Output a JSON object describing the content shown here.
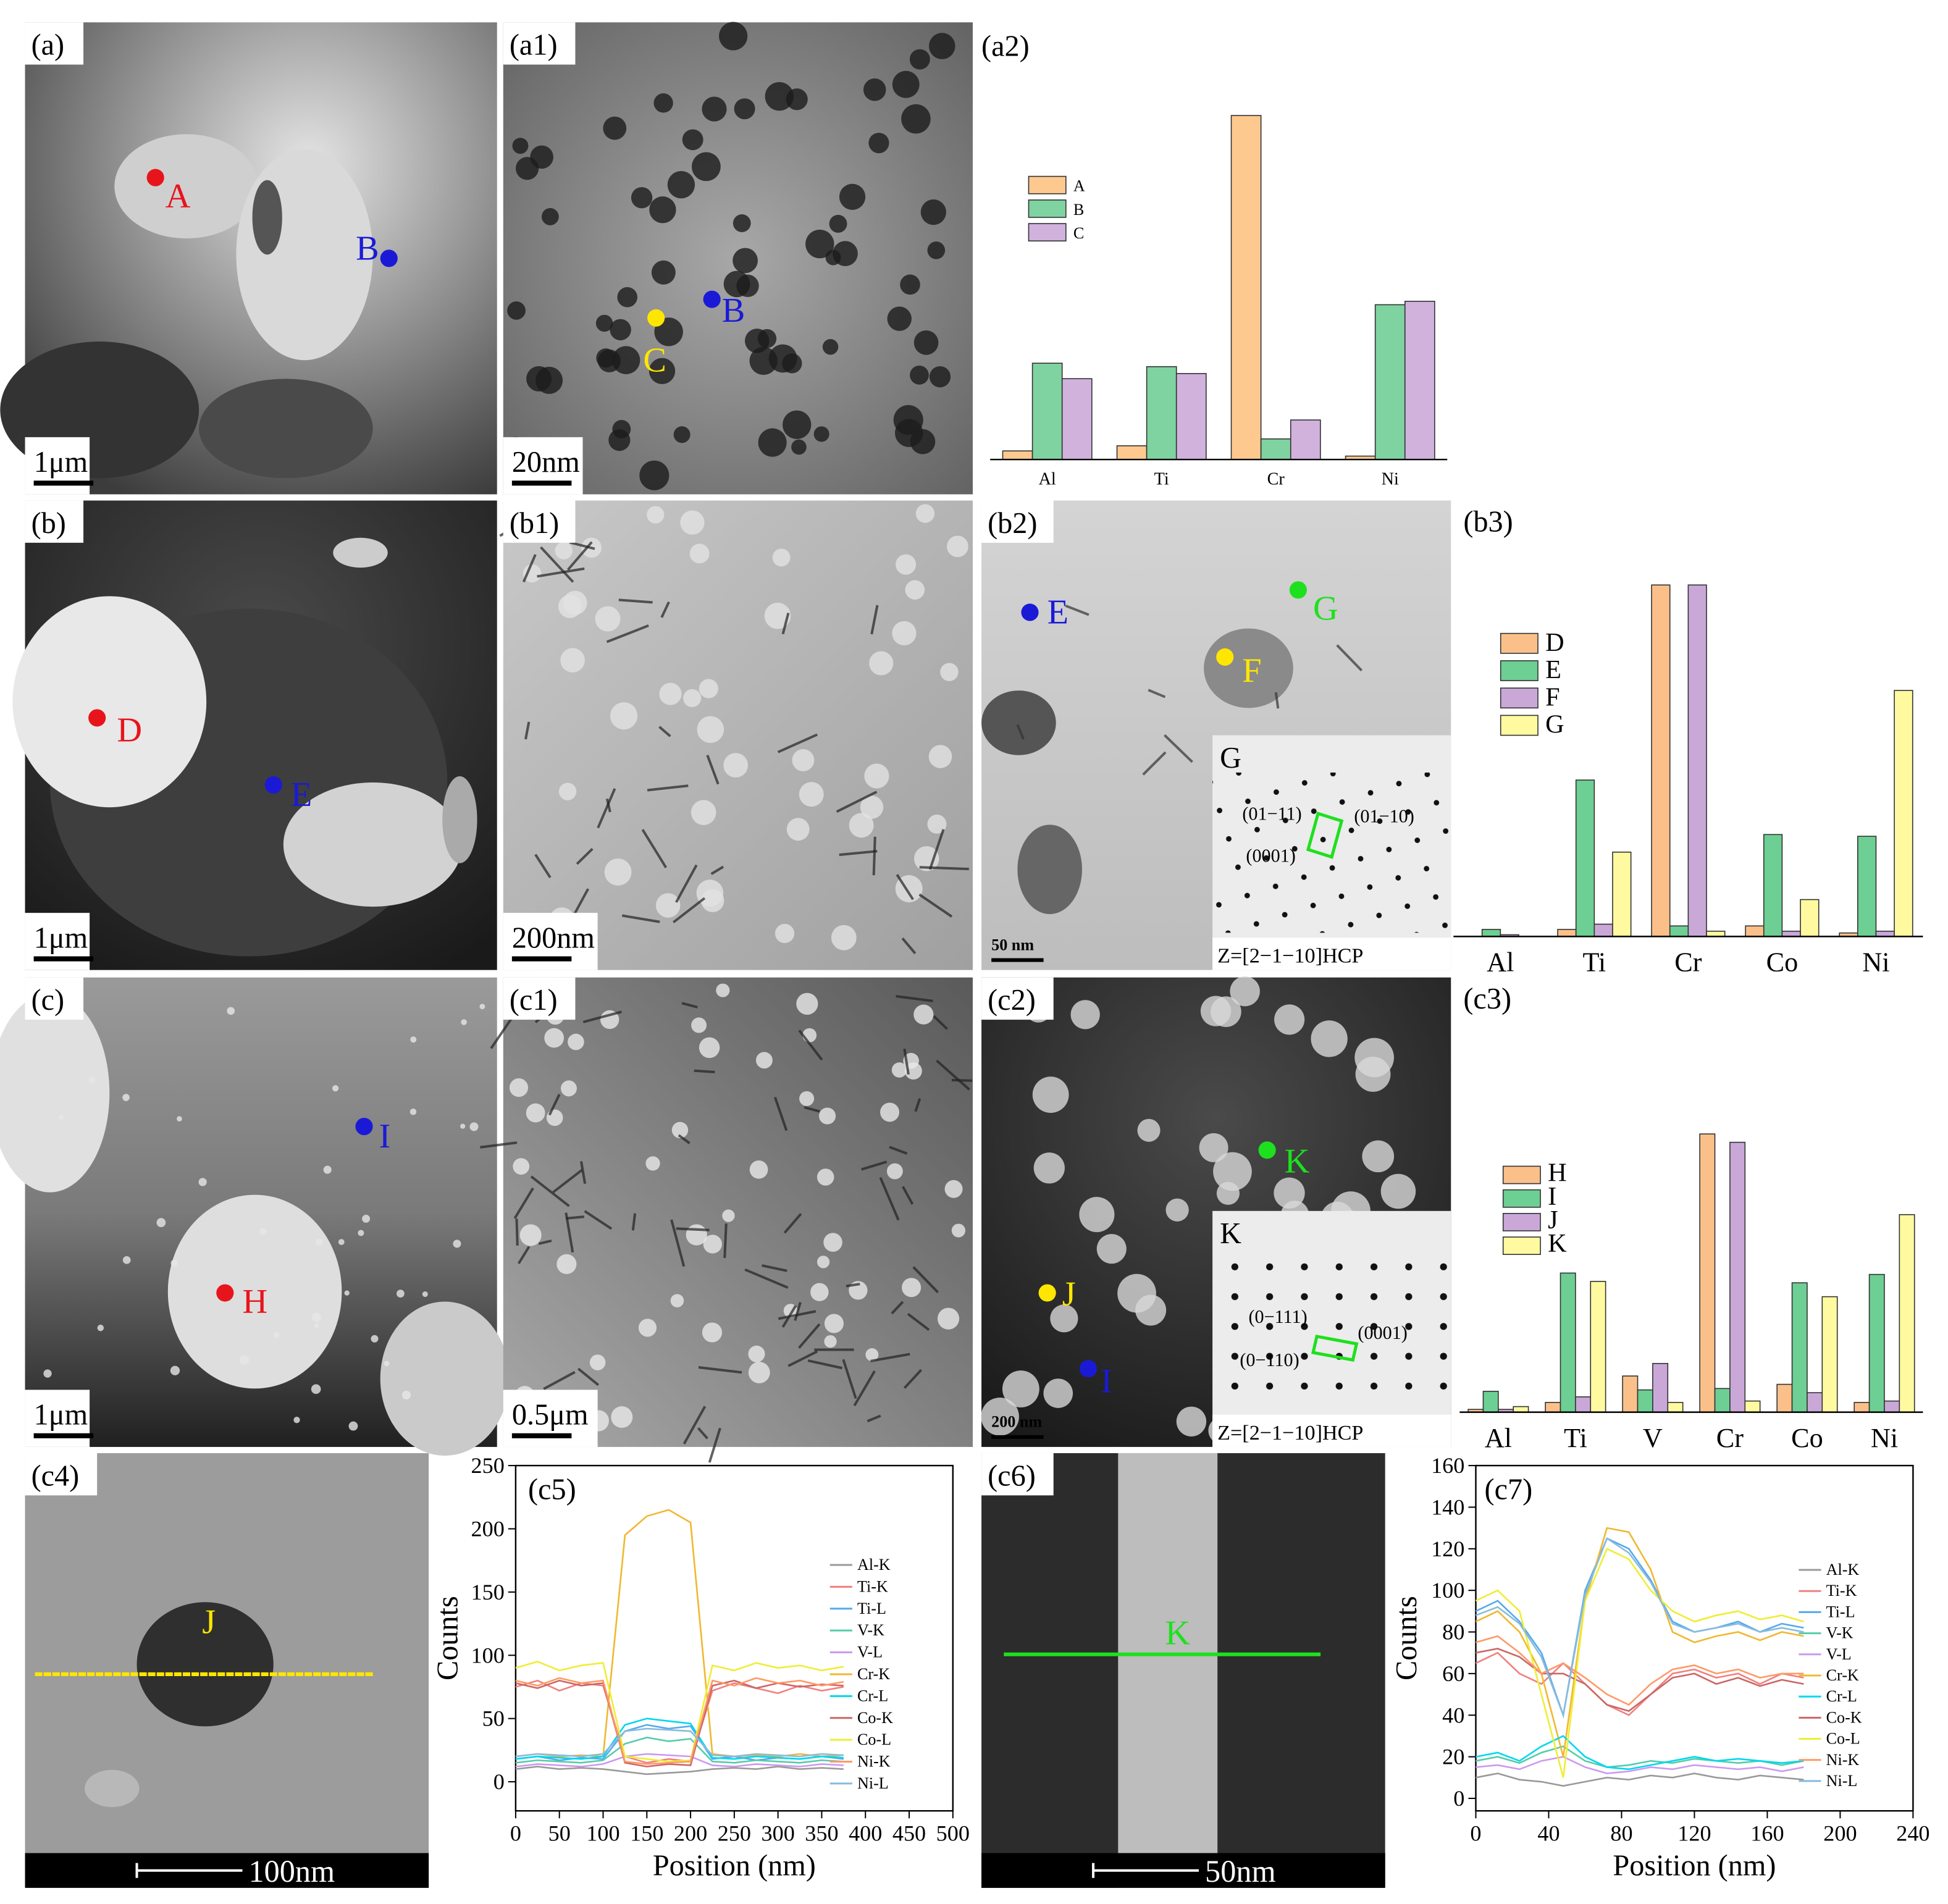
{
  "panels": [
    {
      "label": "(a)",
      "scale_bar": "1μm",
      "markers": [
        "A",
        "B"
      ]
    },
    {
      "label": "(a1)",
      "scale_bar": "20nm",
      "markers": [
        "C",
        "B"
      ]
    },
    {
      "label": "(b)",
      "scale_bar": "1μm",
      "markers": [
        "D",
        "E"
      ]
    },
    {
      "label": "(b1)",
      "scale_bar": "200nm"
    },
    {
      "label": "(b2)",
      "scale_bar": "50 nm",
      "markers": [
        "E",
        "G",
        "F"
      ],
      "inset": {
        "label": "G",
        "planes": [
          "(01−11)",
          "(01−10)",
          "(0001)"
        ],
        "zone_axis": "Z=[2−1−10]HCP"
      }
    },
    {
      "label": "(c)",
      "scale_bar": "1μm",
      "markers": [
        "I",
        "H"
      ]
    },
    {
      "label": "(c1)",
      "scale_bar": "0.5μm"
    },
    {
      "label": "(c2)",
      "scale_bar": "200 nm",
      "markers": [
        "K",
        "J",
        "I"
      ],
      "inset": {
        "label": "K",
        "planes": [
          "(0−111)",
          "(0001)",
          "(0−110)"
        ],
        "zone_axis": "Z=[2−1−10]HCP"
      }
    },
    {
      "label": "(c4)",
      "scale_bar": "100nm",
      "markers": [
        "J"
      ]
    },
    {
      "label": "(c6)",
      "scale_bar": "50nm",
      "markers": [
        "K"
      ]
    }
  ],
  "chart_data": [
    {
      "type": "bar",
      "title": "(a2)",
      "categories": [
        "Al",
        "Ti",
        "Cr",
        "Ni"
      ],
      "series": [
        {
          "name": "A",
          "color": "#fdc98f",
          "values": [
            2.5,
            4,
            100,
            1
          ]
        },
        {
          "name": "B",
          "color": "#7fd3a0",
          "values": [
            28,
            27,
            6,
            45
          ]
        },
        {
          "name": "C",
          "color": "#d1b2dd",
          "values": [
            23.5,
            25,
            11.5,
            46
          ]
        }
      ]
    },
    {
      "type": "bar",
      "title": "(b3)",
      "categories": [
        "Al",
        "Ti",
        "Cr",
        "Co",
        "Ni"
      ],
      "series": [
        {
          "name": "D",
          "color": "#fbc08a",
          "values": [
            0,
            2,
            100,
            3,
            1
          ]
        },
        {
          "name": "E",
          "color": "#6dcf93",
          "values": [
            2,
            44.5,
            3,
            29,
            28.5
          ]
        },
        {
          "name": "F",
          "color": "#c9a8d8",
          "values": [
            0.5,
            3.5,
            100,
            1.5,
            1.5
          ]
        },
        {
          "name": "G",
          "color": "#fffaa0",
          "values": [
            0,
            24,
            1.5,
            10.5,
            70
          ]
        }
      ]
    },
    {
      "type": "bar",
      "title": "(c3)",
      "categories": [
        "Al",
        "Ti",
        "V",
        "Cr",
        "Co",
        "Ni"
      ],
      "series": [
        {
          "name": "H",
          "color": "#fbc08a",
          "values": [
            1,
            3.5,
            13,
            100,
            10,
            3.5
          ]
        },
        {
          "name": "I",
          "color": "#6dcf93",
          "values": [
            7.5,
            50,
            8,
            8.5,
            46.5,
            49.5
          ]
        },
        {
          "name": "J",
          "color": "#c9a8d8",
          "values": [
            1,
            5.5,
            17.5,
            97,
            7,
            4
          ]
        },
        {
          "name": "K",
          "color": "#fffaa0",
          "values": [
            2,
            47,
            3.5,
            4,
            41.5,
            71
          ]
        }
      ]
    },
    {
      "type": "line",
      "title": "(c5)",
      "xlabel": "Position (nm)",
      "ylabel": "Counts",
      "x": [
        0,
        25,
        50,
        75,
        100,
        125,
        150,
        175,
        200,
        225,
        250,
        275,
        300,
        325,
        350,
        375
      ],
      "xlim": [
        0,
        500
      ],
      "xticks": [
        0,
        50,
        100,
        150,
        200,
        250,
        300,
        350,
        400,
        450,
        500
      ],
      "ylim": [
        -23,
        250
      ],
      "yticks": [
        0,
        50,
        100,
        150,
        200,
        250
      ],
      "series": [
        {
          "name": "Al-K",
          "color": "#999999",
          "values": [
            10,
            12,
            10,
            11,
            10,
            8,
            6,
            7,
            8,
            10,
            11,
            10,
            12,
            10,
            11,
            10
          ]
        },
        {
          "name": "Ti-K",
          "color": "#f08080",
          "values": [
            75,
            80,
            72,
            78,
            76,
            20,
            15,
            18,
            16,
            72,
            78,
            74,
            70,
            76,
            72,
            75
          ]
        },
        {
          "name": "Ti-L",
          "color": "#55aaee",
          "values": [
            18,
            20,
            17,
            19,
            18,
            40,
            45,
            42,
            44,
            18,
            20,
            17,
            19,
            18,
            20,
            18
          ]
        },
        {
          "name": "V-K",
          "color": "#55ccaa",
          "values": [
            15,
            17,
            16,
            15,
            17,
            30,
            35,
            32,
            34,
            16,
            15,
            17,
            16,
            15,
            17,
            16
          ]
        },
        {
          "name": "V-L",
          "color": "#cc99ee",
          "values": [
            12,
            14,
            13,
            12,
            14,
            20,
            22,
            21,
            20,
            13,
            12,
            14,
            13,
            12,
            14,
            13
          ]
        },
        {
          "name": "Cr-K",
          "color": "#f0b830",
          "values": [
            20,
            22,
            20,
            21,
            20,
            195,
            210,
            215,
            205,
            22,
            20,
            21,
            20,
            22,
            20,
            21
          ]
        },
        {
          "name": "Cr-L",
          "color": "#00d8ee",
          "values": [
            18,
            20,
            19,
            18,
            20,
            45,
            50,
            48,
            46,
            19,
            18,
            20,
            19,
            18,
            20,
            19
          ]
        },
        {
          "name": "Co-K",
          "color": "#cc6666",
          "values": [
            78,
            74,
            80,
            76,
            78,
            15,
            12,
            14,
            13,
            76,
            80,
            74,
            78,
            75,
            77,
            76
          ]
        },
        {
          "name": "Co-L",
          "color": "#eeee33",
          "values": [
            90,
            95,
            88,
            92,
            94,
            20,
            18,
            16,
            17,
            92,
            88,
            94,
            90,
            92,
            88,
            91
          ]
        },
        {
          "name": "Ni-K",
          "color": "#ff9966",
          "values": [
            80,
            76,
            82,
            78,
            80,
            16,
            14,
            15,
            16,
            80,
            76,
            82,
            78,
            80,
            76,
            79
          ]
        },
        {
          "name": "Ni-L",
          "color": "#88bbdd",
          "values": [
            20,
            22,
            21,
            20,
            22,
            40,
            42,
            41,
            40,
            21,
            20,
            22,
            21,
            20,
            22,
            21
          ]
        }
      ]
    },
    {
      "type": "line",
      "title": "(c7)",
      "xlabel": "Position (nm)",
      "ylabel": "Counts",
      "x": [
        0,
        12,
        24,
        36,
        48,
        60,
        72,
        84,
        96,
        108,
        120,
        132,
        144,
        156,
        168,
        180
      ],
      "xlim": [
        0,
        240
      ],
      "xticks": [
        0,
        40,
        80,
        120,
        160,
        200,
        240
      ],
      "ylim": [
        -6,
        160
      ],
      "yticks": [
        0,
        20,
        40,
        60,
        80,
        100,
        120,
        140,
        160
      ],
      "series": [
        {
          "name": "Al-K",
          "color": "#999999",
          "values": [
            10,
            12,
            9,
            8,
            6,
            8,
            10,
            9,
            11,
            10,
            12,
            10,
            9,
            11,
            10,
            9
          ]
        },
        {
          "name": "Ti-K",
          "color": "#f08080",
          "values": [
            65,
            70,
            60,
            55,
            65,
            55,
            45,
            40,
            50,
            60,
            62,
            58,
            60,
            55,
            60,
            58
          ]
        },
        {
          "name": "Ti-L",
          "color": "#55aaee",
          "values": [
            90,
            95,
            85,
            70,
            40,
            100,
            125,
            120,
            105,
            85,
            80,
            82,
            85,
            80,
            84,
            82
          ]
        },
        {
          "name": "V-K",
          "color": "#55ccaa",
          "values": [
            18,
            20,
            17,
            22,
            25,
            18,
            15,
            16,
            18,
            17,
            19,
            18,
            17,
            18,
            16,
            18
          ]
        },
        {
          "name": "V-L",
          "color": "#cc99ee",
          "values": [
            15,
            16,
            14,
            18,
            20,
            15,
            12,
            13,
            15,
            14,
            16,
            15,
            14,
            15,
            13,
            15
          ]
        },
        {
          "name": "Cr-K",
          "color": "#f0b830",
          "values": [
            85,
            90,
            80,
            60,
            20,
            95,
            130,
            128,
            110,
            80,
            75,
            78,
            80,
            76,
            80,
            78
          ]
        },
        {
          "name": "Cr-L",
          "color": "#00d8ee",
          "values": [
            20,
            22,
            18,
            25,
            30,
            20,
            15,
            14,
            16,
            18,
            20,
            18,
            19,
            18,
            17,
            18
          ]
        },
        {
          "name": "Co-K",
          "color": "#cc6666",
          "values": [
            70,
            72,
            68,
            60,
            60,
            55,
            45,
            42,
            50,
            58,
            60,
            55,
            58,
            54,
            57,
            55
          ]
        },
        {
          "name": "Co-L",
          "color": "#eeee33",
          "values": [
            95,
            100,
            90,
            50,
            10,
            95,
            120,
            115,
            100,
            90,
            85,
            88,
            90,
            86,
            88,
            85
          ]
        },
        {
          "name": "Ni-K",
          "color": "#ff9966",
          "values": [
            75,
            78,
            70,
            60,
            65,
            58,
            50,
            45,
            55,
            62,
            64,
            60,
            62,
            58,
            60,
            60
          ]
        },
        {
          "name": "Ni-L",
          "color": "#88bbdd",
          "values": [
            88,
            92,
            84,
            68,
            40,
            98,
            125,
            118,
            104,
            84,
            80,
            82,
            84,
            80,
            82,
            80
          ]
        }
      ]
    }
  ]
}
